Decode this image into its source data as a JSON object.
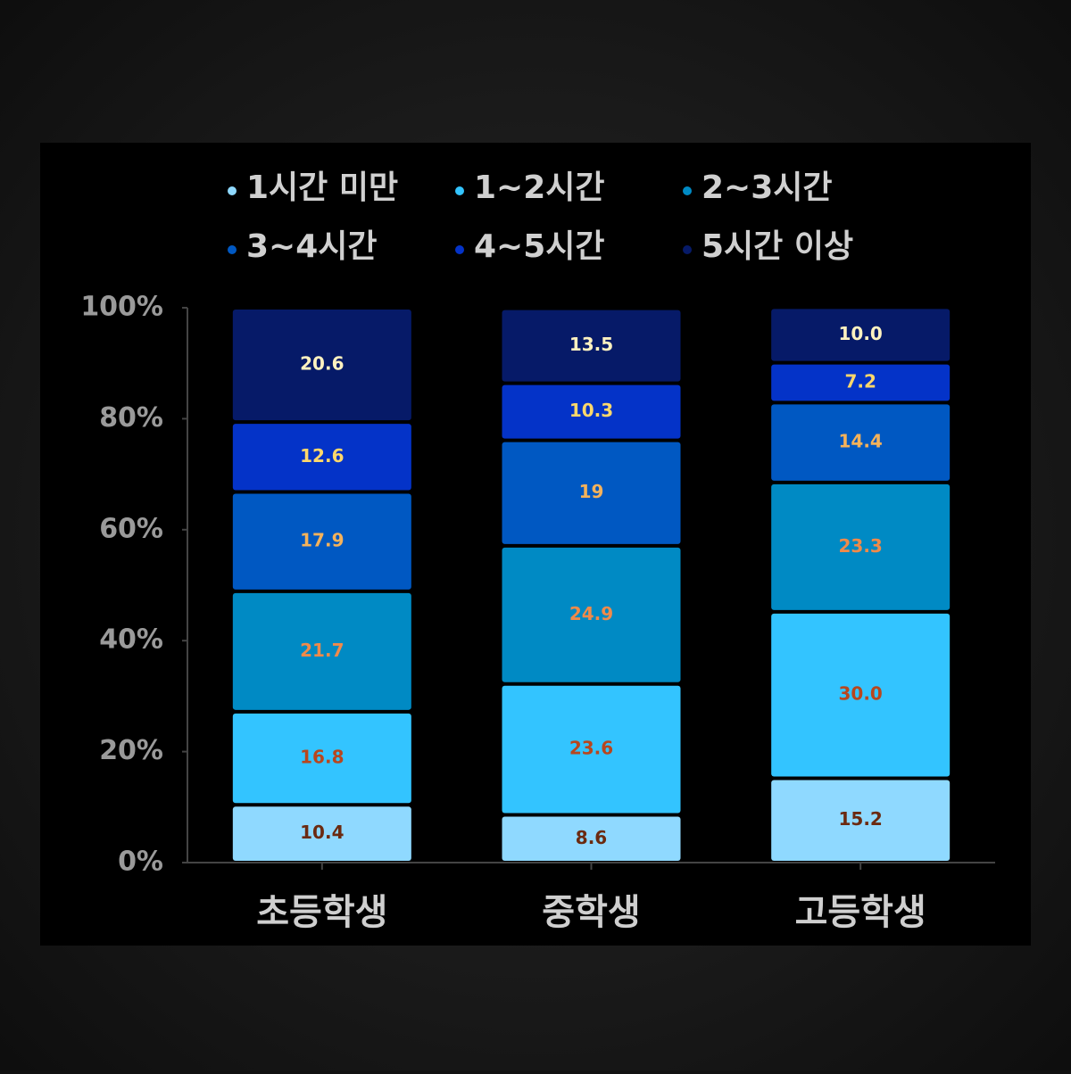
{
  "chart_data": {
    "type": "stacked_bar",
    "categories": [
      "초등학생",
      "중학생",
      "고등학생"
    ],
    "series": [
      {
        "name": "1시간 미만",
        "color": "#8fd9ff",
        "label_color": "#6b2a10",
        "values": [
          10.4,
          8.6,
          15.2
        ]
      },
      {
        "name": "1~2시간",
        "color": "#33c4ff",
        "label_color": "#b8461e",
        "values": [
          16.8,
          23.6,
          30.0
        ],
        "value_labels": [
          "16.8",
          "23.6",
          "30.0"
        ]
      },
      {
        "name": "2~3시간",
        "color": "#008ac4",
        "label_color": "#f08a4a",
        "values": [
          21.7,
          24.9,
          23.3
        ]
      },
      {
        "name": "3~4시간",
        "color": "#0058c2",
        "label_color": "#f5b25a",
        "values": [
          17.9,
          19.0,
          14.4
        ]
      },
      {
        "name": "4~5시간",
        "color": "#0433c8",
        "label_color": "#ffd86b",
        "values": [
          12.6,
          10.3,
          7.2
        ]
      },
      {
        "name": "5시간 이상",
        "color": "#061a68",
        "label_color": "#fff2c0",
        "values": [
          20.6,
          13.5,
          10.0
        ],
        "value_labels": [
          "20.6",
          "13.5",
          "10.0"
        ]
      }
    ],
    "ylim": [
      0,
      100
    ],
    "yticks": [
      {
        "value": 0,
        "label": "0%"
      },
      {
        "value": 20,
        "label": "20%"
      },
      {
        "value": 40,
        "label": "40%"
      },
      {
        "value": 60,
        "label": "60%"
      },
      {
        "value": 80,
        "label": "80%"
      },
      {
        "value": 100,
        "label": "100%"
      }
    ],
    "legend": "top"
  }
}
